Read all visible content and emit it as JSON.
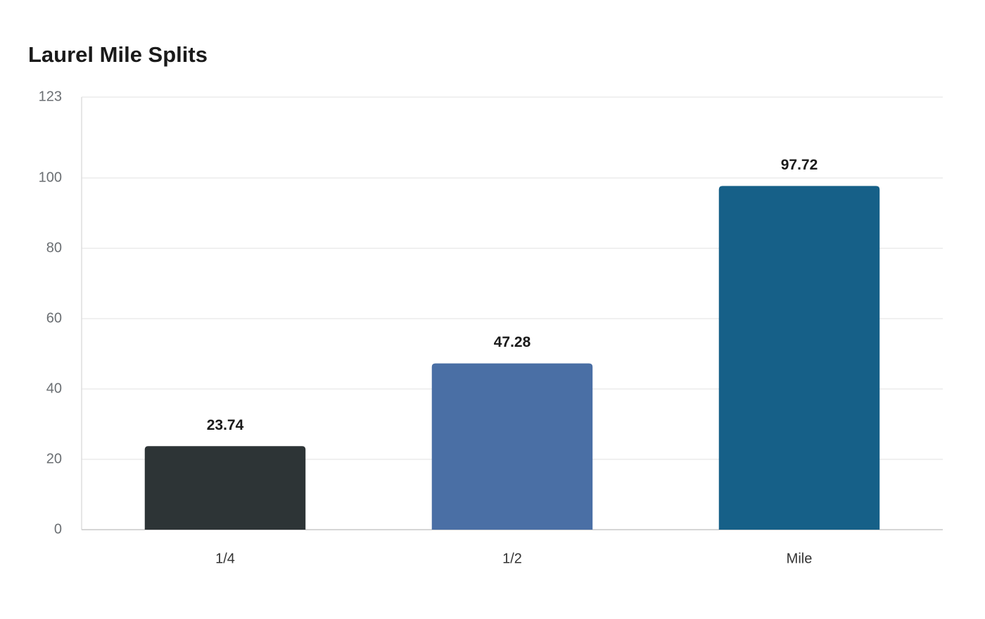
{
  "chart_data": {
    "type": "bar",
    "title": "Laurel Mile Splits",
    "categories": [
      "1/4",
      "1/2",
      "Mile"
    ],
    "values": [
      23.74,
      47.28,
      97.72
    ],
    "colors": [
      "#2d3436",
      "#4a6fa5",
      "#166088"
    ],
    "ylim": [
      0,
      123
    ],
    "yticks": [
      0,
      20,
      40,
      60,
      80,
      100,
      123
    ],
    "grid": true
  }
}
